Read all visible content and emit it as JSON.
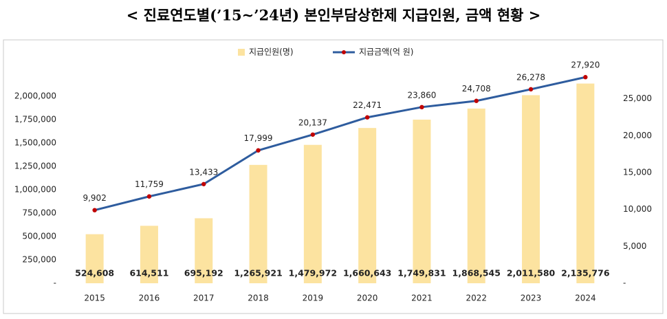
{
  "chart_data": {
    "type": "bar",
    "title": "< 진료연도별(’15~’24년) 본인부담상한제 지급인원, 금액 현황 >",
    "categories": [
      "2015",
      "2016",
      "2017",
      "2018",
      "2019",
      "2020",
      "2021",
      "2022",
      "2023",
      "2024"
    ],
    "series": [
      {
        "name": "지급인원(명)",
        "type": "bar",
        "color": "#fce3a0",
        "values": [
          524608,
          614511,
          695192,
          1265921,
          1479972,
          1660643,
          1749831,
          1868545,
          2011580,
          2135776
        ],
        "value_labels": [
          "524,608",
          "614,511",
          "695,192",
          "1,265,921",
          "1,479,972",
          "1,660,643",
          "1,749,831",
          "1,868,545",
          "2,011,580",
          "2,135,776"
        ]
      },
      {
        "name": "지급금액(억 원)",
        "type": "line",
        "axis": "y2",
        "color": "#2e5c9e",
        "marker_color": "#c00000",
        "values": [
          9902,
          11759,
          13433,
          17999,
          20137,
          22471,
          23860,
          24708,
          26278,
          27920
        ],
        "value_labels": [
          "9,902",
          "11,759",
          "13,433",
          "17,999",
          "20,137",
          "22,471",
          "23,860",
          "24,708",
          "26,278",
          "27,920"
        ]
      }
    ],
    "ylim": [
      0,
      2250000
    ],
    "yticks": [
      {
        "value": 0,
        "label": "-"
      },
      {
        "value": 250000,
        "label": "250,000"
      },
      {
        "value": 500000,
        "label": "500,000"
      },
      {
        "value": 750000,
        "label": "750,000"
      },
      {
        "value": 1000000,
        "label": "1,000,000"
      },
      {
        "value": 1250000,
        "label": "1,250,000"
      },
      {
        "value": 1500000,
        "label": "1,500,000"
      },
      {
        "value": 1750000,
        "label": "1,750,000"
      },
      {
        "value": 2000000,
        "label": "2,000,000"
      }
    ],
    "y2lim": [
      0,
      28500
    ],
    "y2ticks": [
      {
        "value": 0,
        "label": "-"
      },
      {
        "value": 5000,
        "label": "5,000"
      },
      {
        "value": 10000,
        "label": "10,000"
      },
      {
        "value": 15000,
        "label": "15,000"
      },
      {
        "value": 20000,
        "label": "20,000"
      },
      {
        "value": 25000,
        "label": "25,000"
      }
    ],
    "grid": false,
    "legend": "top"
  }
}
